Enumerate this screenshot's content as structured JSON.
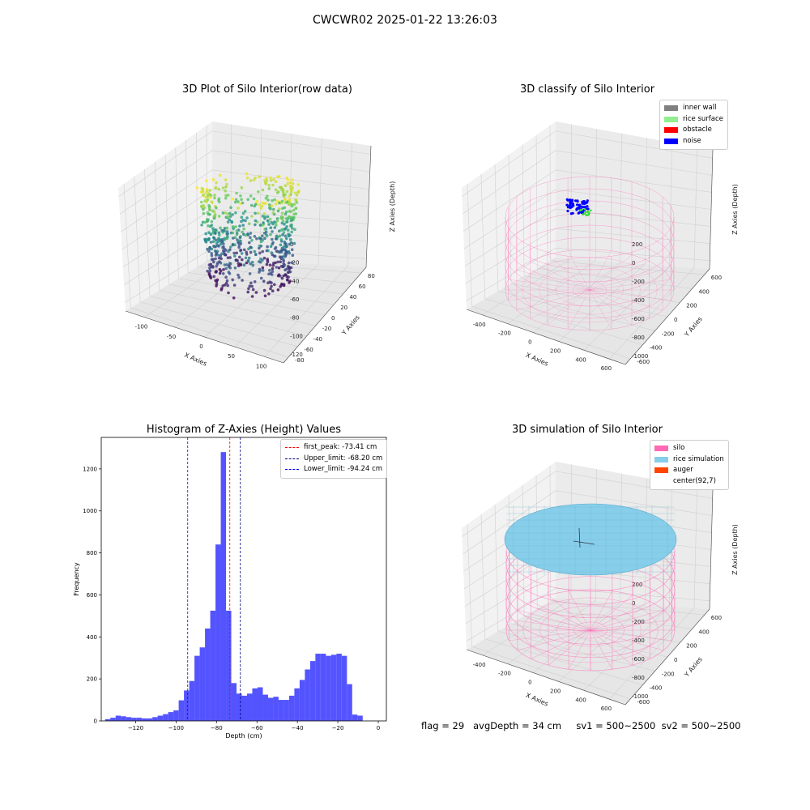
{
  "figure": {
    "suptitle": "CWCWR02 2025-01-22 13:26:03",
    "status_line": "flag = 29   avgDepth = 34 cm     sv1 = 500~2500  sv2 = 500~2500"
  },
  "chart_data": [
    {
      "type": "scatter3d",
      "title": "3D Plot of Silo Interior(row data)",
      "xlabel": "X Axies",
      "ylabel": "Y Axies",
      "zlabel": "Z Axies (Depth)",
      "x_ticks": [
        "-100",
        "-50",
        "0",
        "50",
        "100"
      ],
      "y_ticks": [
        "-80",
        "-60",
        "-40",
        "-20",
        "0",
        "20",
        "40",
        "60",
        "80"
      ],
      "z_ticks": [
        "-120",
        "-100",
        "-80",
        "-60",
        "-40",
        "-20",
        "0"
      ],
      "colormap": "viridis",
      "grid": true
    },
    {
      "type": "scatter3d",
      "title": "3D classify of Silo Interior",
      "zlabel": "Z Axies (Depth)",
      "xlabel": "X Axies",
      "ylabel": "Y Axies",
      "x_ticks": [
        "-400",
        "-200",
        "0",
        "200",
        "400",
        "600"
      ],
      "y_ticks": [
        "-600",
        "-400",
        "-200",
        "0",
        "200",
        "400",
        "600"
      ],
      "z_ticks": [
        "-1000",
        "-800",
        "-600",
        "-400",
        "-200",
        "0",
        "200"
      ],
      "legend": [
        {
          "label": "inner wall",
          "color": "#808080"
        },
        {
          "label": "rice surface",
          "color": "#90ee90"
        },
        {
          "label": "obstacle",
          "color": "#ff0000"
        },
        {
          "label": "noise",
          "color": "#0000ff"
        }
      ],
      "wireframe_color": "#ff69b4",
      "grid": true
    },
    {
      "type": "bar",
      "title": "Histogram of Z-Axies (Height) Values",
      "xlabel": "Depth (cm)",
      "ylabel": "Frequency",
      "xlim": [
        -137,
        4
      ],
      "ylim": [
        0,
        1350
      ],
      "x_ticks": [
        -120,
        -100,
        -80,
        -60,
        -40,
        -20,
        0
      ],
      "y_ticks": [
        0,
        200,
        400,
        600,
        800,
        1000,
        1200
      ],
      "bin_width": 2.6,
      "bar_color": "#4b4bff",
      "bins": [
        {
          "x": -133.8,
          "count": 8
        },
        {
          "x": -131.2,
          "count": 15
        },
        {
          "x": -128.6,
          "count": 25
        },
        {
          "x": -126.0,
          "count": 22
        },
        {
          "x": -123.4,
          "count": 18
        },
        {
          "x": -120.8,
          "count": 15
        },
        {
          "x": -118.2,
          "count": 15
        },
        {
          "x": -115.6,
          "count": 12
        },
        {
          "x": -113.0,
          "count": 12
        },
        {
          "x": -110.4,
          "count": 18
        },
        {
          "x": -107.8,
          "count": 25
        },
        {
          "x": -105.2,
          "count": 32
        },
        {
          "x": -102.6,
          "count": 42
        },
        {
          "x": -100.0,
          "count": 50
        },
        {
          "x": -97.4,
          "count": 98
        },
        {
          "x": -94.8,
          "count": 145
        },
        {
          "x": -92.2,
          "count": 190
        },
        {
          "x": -89.6,
          "count": 310
        },
        {
          "x": -87.0,
          "count": 350
        },
        {
          "x": -84.4,
          "count": 440
        },
        {
          "x": -81.8,
          "count": 525
        },
        {
          "x": -79.2,
          "count": 840
        },
        {
          "x": -76.6,
          "count": 1280
        },
        {
          "x": -74.0,
          "count": 525
        },
        {
          "x": -71.4,
          "count": 180
        },
        {
          "x": -68.8,
          "count": 130
        },
        {
          "x": -66.2,
          "count": 120
        },
        {
          "x": -63.6,
          "count": 130
        },
        {
          "x": -61.0,
          "count": 155
        },
        {
          "x": -58.4,
          "count": 160
        },
        {
          "x": -55.8,
          "count": 125
        },
        {
          "x": -53.2,
          "count": 110
        },
        {
          "x": -50.6,
          "count": 115
        },
        {
          "x": -48.0,
          "count": 100
        },
        {
          "x": -45.4,
          "count": 100
        },
        {
          "x": -42.8,
          "count": 120
        },
        {
          "x": -40.2,
          "count": 155
        },
        {
          "x": -37.6,
          "count": 195
        },
        {
          "x": -35.0,
          "count": 245
        },
        {
          "x": -32.4,
          "count": 285
        },
        {
          "x": -29.8,
          "count": 320
        },
        {
          "x": -27.2,
          "count": 320
        },
        {
          "x": -24.6,
          "count": 310
        },
        {
          "x": -22.0,
          "count": 315
        },
        {
          "x": -19.4,
          "count": 320
        },
        {
          "x": -16.8,
          "count": 310
        },
        {
          "x": -14.2,
          "count": 175
        },
        {
          "x": -11.6,
          "count": 30
        },
        {
          "x": -9.0,
          "count": 25
        }
      ],
      "vlines": [
        {
          "label": "first_peak: -73.41 cm",
          "x": -73.41,
          "color": "#ff0000"
        },
        {
          "label": "Upper_limit: -68.20 cm",
          "x": -68.2,
          "color": "#000080"
        },
        {
          "label": "Lower_limit: -94.24 cm",
          "x": -94.24,
          "color": "#0000ff"
        }
      ],
      "legend_placement": "top-right"
    },
    {
      "type": "surface3d",
      "title": "3D simulation of Silo Interior",
      "zlabel": "Z Axies (Depth)",
      "xlabel": "X Axies",
      "ylabel": "Y Axies",
      "x_ticks": [
        "-400",
        "-200",
        "0",
        "200",
        "400",
        "600"
      ],
      "y_ticks": [
        "-600",
        "-400",
        "-200",
        "0",
        "200",
        "400",
        "600"
      ],
      "z_ticks": [
        "-1000",
        "-800",
        "-600",
        "-400",
        "-200",
        "0",
        "200"
      ],
      "legend": [
        {
          "label": "silo",
          "color": "#ff69b4"
        },
        {
          "label": "rice simulation",
          "color": "#87ceeb"
        },
        {
          "label": "auger",
          "color": "#ff4500"
        },
        {
          "label": "center(92,7)",
          "color": ""
        }
      ],
      "grid": true
    }
  ]
}
